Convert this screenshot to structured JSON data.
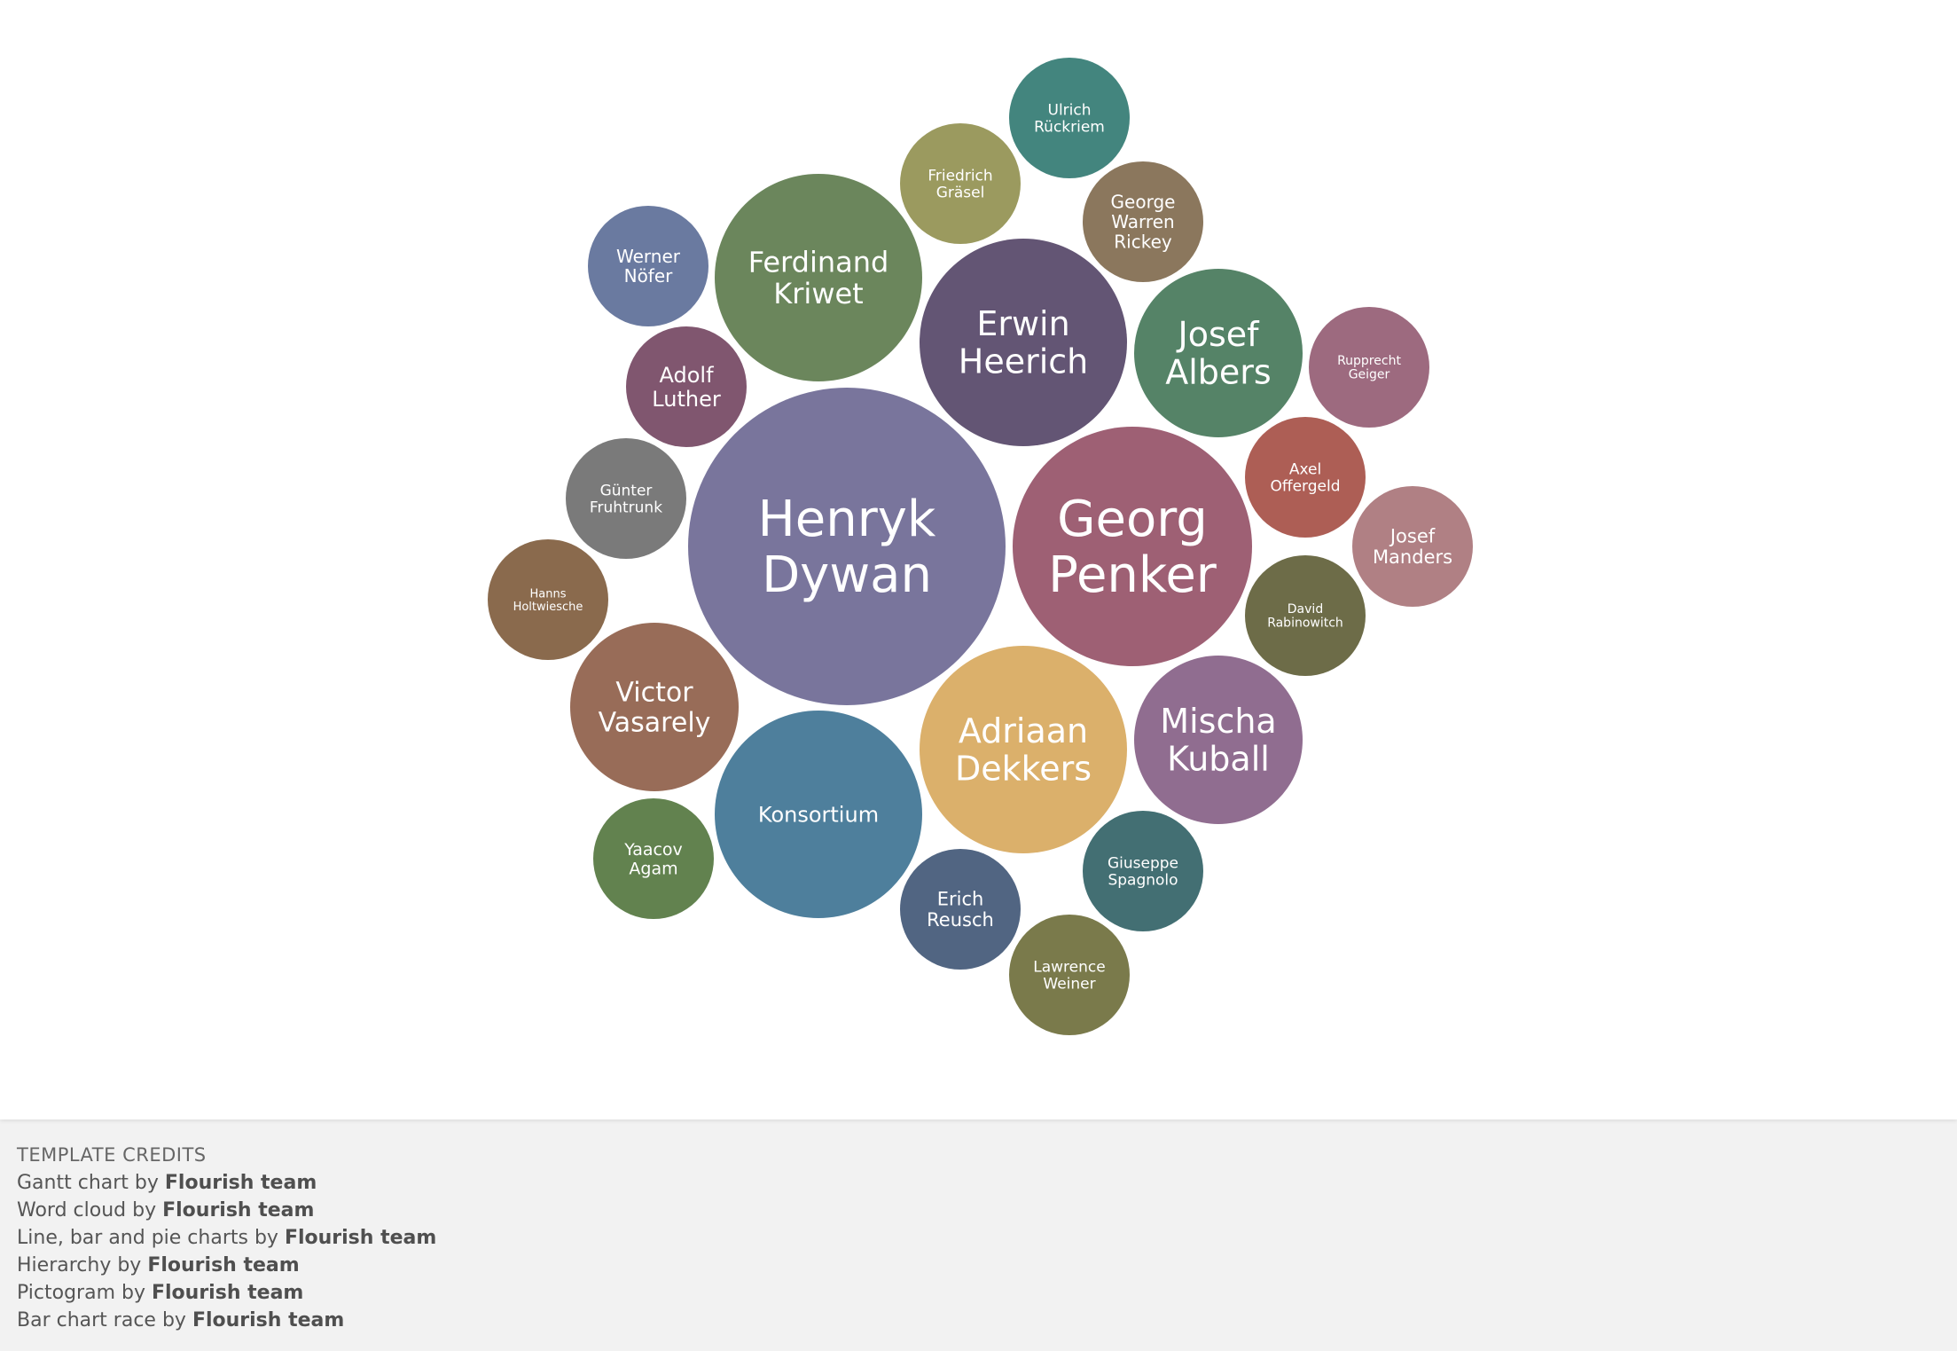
{
  "chart_data": {
    "type": "bubble",
    "bubbles": [
      {
        "label": "Henryk Dywan",
        "lines": [
          "Henryk",
          "Dywan"
        ],
        "color": "#79759c"
      },
      {
        "label": "Georg Penker",
        "lines": [
          "Georg",
          "Penker"
        ],
        "color": "#9e6074"
      },
      {
        "label": "Erwin Heerich",
        "lines": [
          "Erwin",
          "Heerich"
        ],
        "color": "#635574"
      },
      {
        "label": "Ferdinand Kriwet",
        "lines": [
          "Ferdinand",
          "Kriwet"
        ],
        "color": "#6b865c"
      },
      {
        "label": "Adriaan Dekkers",
        "lines": [
          "Adriaan",
          "Dekkers"
        ],
        "color": "#dbb06b",
        "textColor": "#333333"
      },
      {
        "label": "Konsortium",
        "lines": [
          "Konsortium"
        ],
        "color": "#4e7f9c"
      },
      {
        "label": "Josef Albers",
        "lines": [
          "Josef",
          "Albers"
        ],
        "color": "#558367"
      },
      {
        "label": "Mischa Kuball",
        "lines": [
          "Mischa",
          "Kuball"
        ],
        "color": "#906d90"
      },
      {
        "label": "Victor Vasarely",
        "lines": [
          "Victor",
          "Vasarely"
        ],
        "color": "#986c58"
      },
      {
        "label": "Werner Nöfer",
        "lines": [
          "Werner",
          "Nöfer"
        ],
        "color": "#6a7aa0"
      },
      {
        "label": "Adolf Luther",
        "lines": [
          "Adolf",
          "Luther"
        ],
        "color": "#80566f"
      },
      {
        "label": "Günter Fruhtrunk",
        "lines": [
          "Günter",
          "Fruhtrunk"
        ],
        "color": "#7a7a7a"
      },
      {
        "label": "Hanns Holtwiesche",
        "lines": [
          "Hanns",
          "Holtwiesche"
        ],
        "color": "#8a6a4d"
      },
      {
        "label": "Yaacov Agam",
        "lines": [
          "Yaacov",
          "Agam"
        ],
        "color": "#62824f"
      },
      {
        "label": "Erich Reusch",
        "lines": [
          "Erich",
          "Reusch"
        ],
        "color": "#516582"
      },
      {
        "label": "Lawrence Weiner",
        "lines": [
          "Lawrence",
          "Weiner"
        ],
        "color": "#7a7a4b"
      },
      {
        "label": "Giuseppe Spagnolo",
        "lines": [
          "Giuseppe",
          "Spagnolo"
        ],
        "color": "#436f73"
      },
      {
        "label": "David Rabinowitch",
        "lines": [
          "David",
          "Rabinowitch"
        ],
        "color": "#6d6c48"
      },
      {
        "label": "Josef Manders",
        "lines": [
          "Josef",
          "Manders"
        ],
        "color": "#b08084"
      },
      {
        "label": "Axel Offergeld",
        "lines": [
          "Axel",
          "Offergeld"
        ],
        "color": "#ad5e55"
      },
      {
        "label": "Rupprecht Geiger",
        "lines": [
          "Rupprecht",
          "Geiger"
        ],
        "color": "#9d6a7f"
      },
      {
        "label": "George Warren Rickey",
        "lines": [
          "George",
          "Warren",
          "Rickey"
        ],
        "color": "#8b775d"
      },
      {
        "label": "Ulrich Rückriem",
        "lines": [
          "Ulrich",
          "Rückriem"
        ],
        "color": "#43857e"
      },
      {
        "label": "Friedrich Gräsel",
        "lines": [
          "Friedrich",
          "Gräsel"
        ],
        "color": "#9b9a5f"
      }
    ]
  },
  "credits": {
    "heading": "TEMPLATE CREDITS",
    "items": [
      {
        "prefix": "Gantt chart by",
        "author": "Flourish team"
      },
      {
        "prefix": "Word cloud by",
        "author": "Flourish team"
      },
      {
        "prefix": "Line, bar and pie charts by",
        "author": "Flourish team"
      },
      {
        "prefix": "Hierarchy by",
        "author": "Flourish team"
      },
      {
        "prefix": "Pictogram by",
        "author": "Flourish team"
      },
      {
        "prefix": "Bar chart race by",
        "author": "Flourish team"
      }
    ]
  }
}
